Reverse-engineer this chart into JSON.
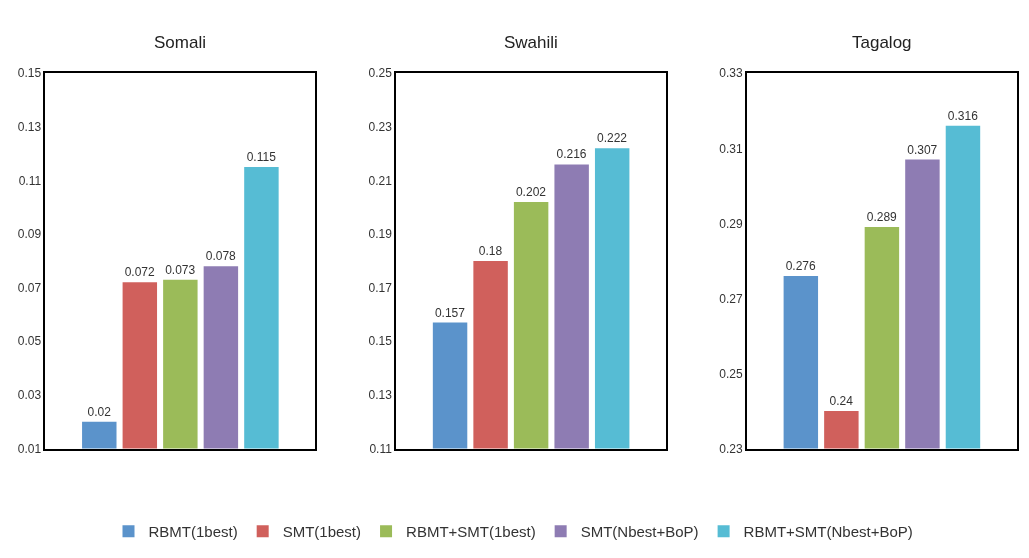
{
  "chart_data": [
    {
      "type": "bar",
      "title": "Somali",
      "categories": [
        null
      ],
      "ylim": [
        0.01,
        0.15
      ],
      "yticks": [
        0.01,
        0.03,
        0.05,
        0.07,
        0.09,
        0.11,
        0.13,
        0.15
      ],
      "data_labels": true,
      "legend": "bottom",
      "series": [
        {
          "name": "RBMT(1best)",
          "color": "#5b93cb",
          "values": [
            0.02
          ]
        },
        {
          "name": "SMT(1best)",
          "color": "#d0605c",
          "values": [
            0.072
          ]
        },
        {
          "name": "RBMT+SMT(1best)",
          "color": "#9bbb59",
          "values": [
            0.073
          ]
        },
        {
          "name": "SMT(Nbest+BoP)",
          "color": "#8e7cb3",
          "values": [
            0.078
          ]
        },
        {
          "name": "RBMT+SMT(Nbest+BoP)",
          "color": "#56bcd4",
          "values": [
            0.115
          ]
        }
      ]
    },
    {
      "type": "bar",
      "title": "Swahili",
      "categories": [
        null
      ],
      "ylim": [
        0.11,
        0.25
      ],
      "yticks": [
        0.11,
        0.13,
        0.15,
        0.17,
        0.19,
        0.21,
        0.23,
        0.25
      ],
      "data_labels": true,
      "series": [
        {
          "color": "#5b93cb",
          "values": [
            0.157
          ]
        },
        {
          "color": "#d0605c",
          "values": [
            0.18
          ]
        },
        {
          "color": "#9bbb59",
          "values": [
            0.202
          ]
        },
        {
          "color": "#8e7cb3",
          "values": [
            0.216
          ]
        },
        {
          "color": "#56bcd4",
          "values": [
            0.222
          ]
        }
      ]
    },
    {
      "type": "bar",
      "title": "Tagalog",
      "categories": [
        null
      ],
      "ylim": [
        0.23,
        0.33
      ],
      "yticks": [
        0.23,
        0.25,
        0.27,
        0.29,
        0.31,
        0.33
      ],
      "data_labels": true,
      "series": [
        {
          "color": "#5b93cb",
          "values": [
            0.276
          ]
        },
        {
          "color": "#d0605c",
          "values": [
            0.24
          ]
        },
        {
          "color": "#9bbb59",
          "values": [
            0.289
          ]
        },
        {
          "color": "#8e7cb3",
          "values": [
            0.307
          ]
        },
        {
          "color": "#56bcd4",
          "values": [
            0.316
          ]
        }
      ]
    }
  ]
}
